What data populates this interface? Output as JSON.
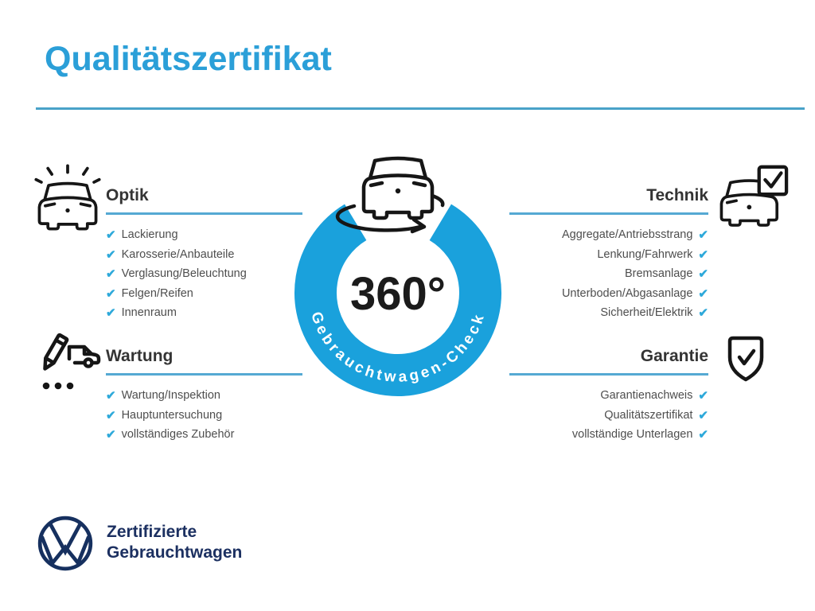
{
  "page": {
    "title": "Qualitätszertifikat"
  },
  "badge": {
    "degree": "360°",
    "ring_label": "Gebrauchtwagen-Check"
  },
  "sections": [
    {
      "id": "optik",
      "label": "Optik",
      "icon": "car-shine-icon",
      "items": [
        "Lackierung",
        "Karosserie/Anbauteile",
        "Verglasung/Beleuchtung",
        "Felgen/Reifen",
        "Innenraum"
      ]
    },
    {
      "id": "technik",
      "label": "Technik",
      "icon": "car-checkbox-icon",
      "items": [
        "Aggregate/Antriebsstrang",
        "Lenkung/Fahrwerk",
        "Bremsanlage",
        "Unterboden/Abgasanlage",
        "Sicherheit/Elektrik"
      ]
    },
    {
      "id": "wartung",
      "label": "Wartung",
      "icon": "service-checklist-icon",
      "items": [
        "Wartung/Inspektion",
        "Hauptuntersuchung",
        "vollständiges Zubehör"
      ]
    },
    {
      "id": "garantie",
      "label": "Garantie",
      "icon": "shield-check-icon",
      "items": [
        "Garantienachweis",
        "Qualitätszertifikat",
        "vollständige Unterlagen"
      ]
    }
  ],
  "footer": {
    "line1": "Zertifizierte",
    "line2": "Gebrauchtwagen"
  },
  "icons": {
    "check": "✔"
  },
  "colors": {
    "accent_blue": "#2b9fd8",
    "ring_blue": "#1aa1dc",
    "check_blue": "#2ea9da",
    "underline_blue": "#55a9d3",
    "text_gray": "#4e4e4e",
    "vw_navy": "#16305f"
  }
}
